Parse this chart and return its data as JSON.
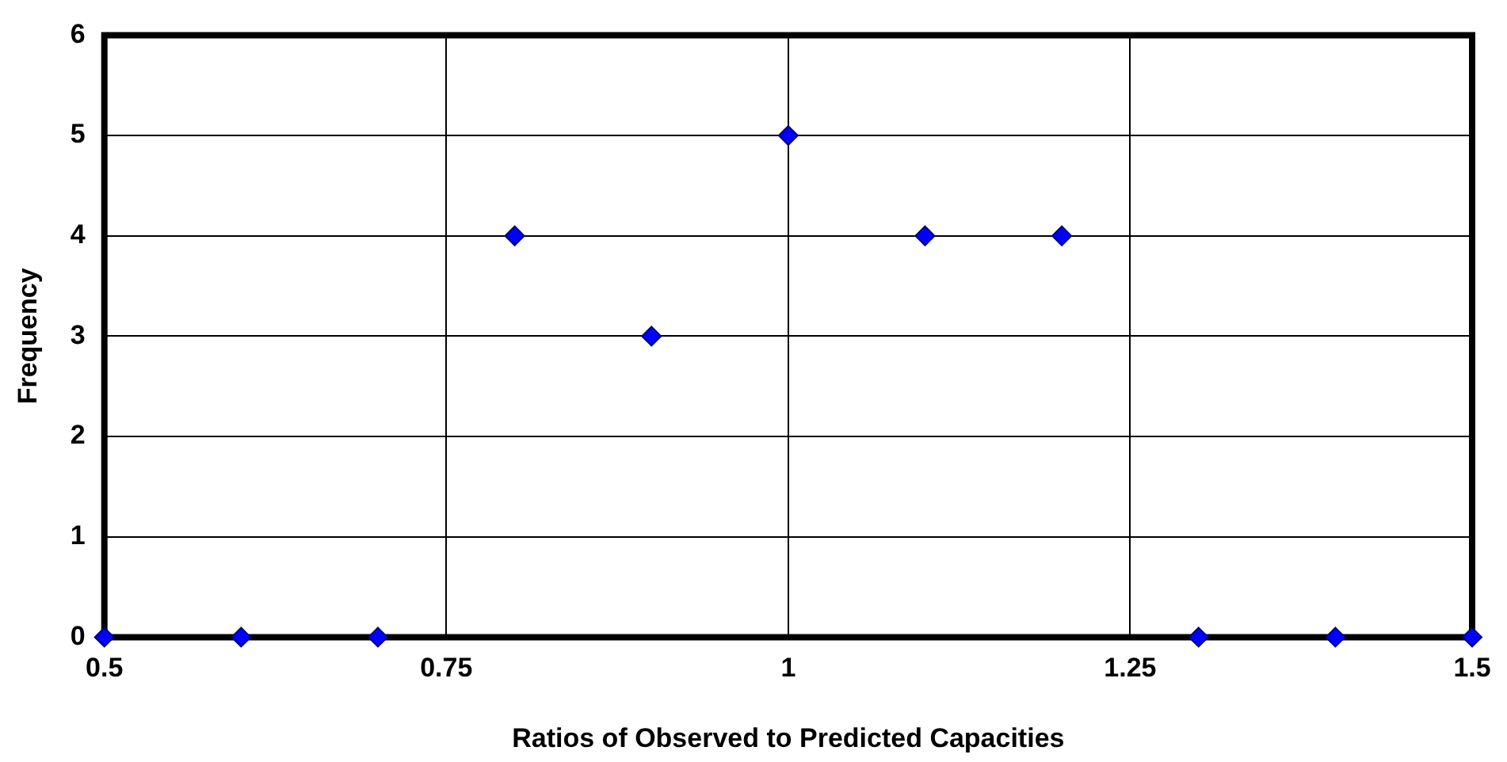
{
  "chart_data": {
    "type": "scatter",
    "xlabel": "Ratios of Observed to Predicted Capacities",
    "ylabel": "Frequency",
    "x": [
      0.5,
      0.6,
      0.7,
      0.8,
      0.9,
      1,
      1.1,
      1.2,
      1.3,
      1.4,
      1.5
    ],
    "series": [
      {
        "color": "#0000ff",
        "values": [
          0,
          0,
          0,
          4,
          3,
          5,
          4,
          4,
          0,
          0,
          0
        ]
      }
    ],
    "xlim": [
      0.5,
      1.5
    ],
    "xticks": [
      0.5,
      0.75,
      1,
      1.25,
      1.5
    ],
    "ylim": [
      0,
      6
    ],
    "yticks": [
      0,
      1,
      2,
      3,
      4,
      5,
      6
    ],
    "grid": true,
    "marker": "diamond",
    "legend": false
  }
}
